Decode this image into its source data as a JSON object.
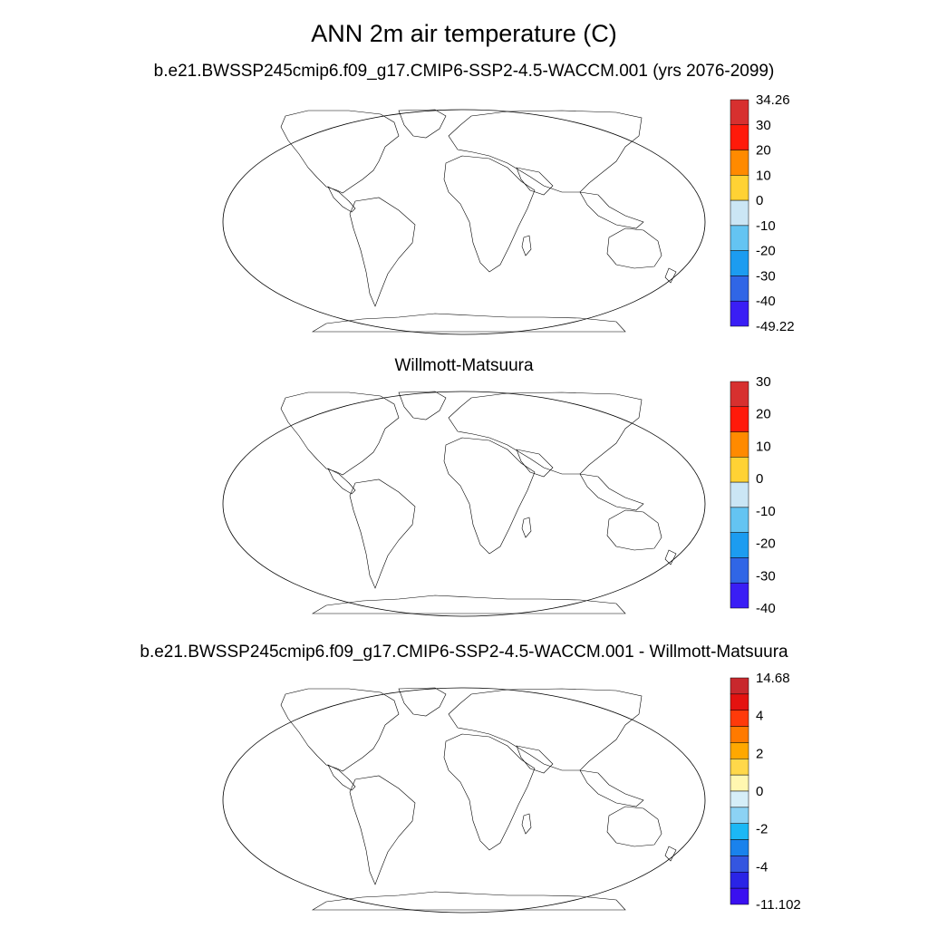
{
  "title": "ANN 2m air temperature (C)",
  "panels": [
    {
      "subtitle": "b.e21.BWSSP245cmip6.f09_g17.CMIP6-SSP2-4.5-WACCM.001 (yrs 2076-2099)",
      "colorbar": {
        "labels": [
          "34.26",
          "30",
          "20",
          "10",
          "0",
          "-10",
          "-20",
          "-30",
          "-40",
          "-49.22"
        ],
        "colors": [
          "#d7302f",
          "#ff1a0a",
          "#ff8a00",
          "#ffd234",
          "#cbe6f5",
          "#64c4f2",
          "#1c9cf0",
          "#3066e6",
          "#3a1ef5"
        ]
      }
    },
    {
      "subtitle": "Willmott-Matsuura",
      "colorbar": {
        "labels": [
          "30",
          "20",
          "10",
          "0",
          "-10",
          "-20",
          "-30",
          "-40"
        ],
        "colors": [
          "#d7302f",
          "#ff1a0a",
          "#ff8a00",
          "#ffd234",
          "#cbe6f5",
          "#64c4f2",
          "#1c9cf0",
          "#3066e6",
          "#3a1ef5"
        ]
      }
    },
    {
      "subtitle": "b.e21.BWSSP245cmip6.f09_g17.CMIP6-SSP2-4.5-WACCM.001 - Willmott-Matsuura",
      "colorbar": {
        "labels": [
          "14.68",
          "4",
          "2",
          "0",
          "-2",
          "-4",
          "-11.102"
        ],
        "colors": [
          "#c8282d",
          "#e41210",
          "#ff3a0a",
          "#ff7a00",
          "#ffa800",
          "#ffd84a",
          "#fff7b0",
          "#d6eef8",
          "#8cd2f4",
          "#1cb8f5",
          "#1a82ec",
          "#3456e0",
          "#2a24e6",
          "#3a10f0"
        ]
      }
    }
  ]
}
